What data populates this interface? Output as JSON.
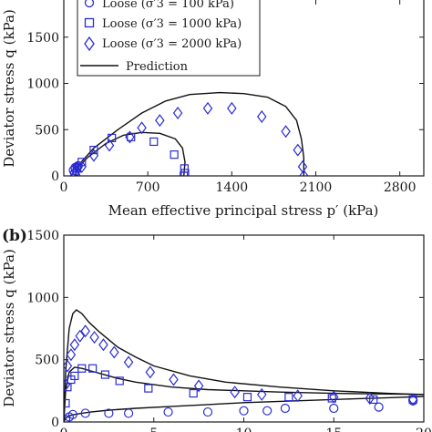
{
  "figure": {
    "colors": {
      "marker": "#2b2bd6",
      "prediction": "#111111",
      "axis": "#1a1a1a"
    },
    "legend": [
      {
        "label": "Loose (σ′3 = 100 kPa)",
        "marker": "circle"
      },
      {
        "label": "Loose (σ′3 = 1000 kPa)",
        "marker": "square"
      },
      {
        "label": "Loose (σ′3 = 2000 kPa)",
        "marker": "diamond"
      },
      {
        "label": "Prediction",
        "marker": "line"
      }
    ]
  },
  "chart_data": [
    {
      "type": "scatter",
      "panel": "",
      "title": "",
      "xlabel": "Mean effective principal stress p′ (kPa)",
      "ylabel": "Deviator stress q (kPa)",
      "xlim": [
        0,
        3000
      ],
      "ylim": [
        0,
        2000
      ],
      "xticks": [
        0,
        700,
        1400,
        2100,
        2800
      ],
      "yticks": [
        0,
        500,
        1000,
        1500
      ],
      "legend_position": "top-left",
      "series": [
        {
          "name": "Loose (σ′3 = 100 kPa)",
          "marker": "circle",
          "x": [
            100,
            90,
            80,
            95,
            110,
            120
          ],
          "y": [
            0,
            30,
            60,
            90,
            100,
            110
          ]
        },
        {
          "name": "Loose (σ′3 = 1000 kPa)",
          "marker": "square",
          "x": [
            1000,
            1010,
            1005,
            920,
            750,
            560,
            400,
            250,
            150,
            110
          ],
          "y": [
            0,
            30,
            80,
            230,
            370,
            420,
            410,
            280,
            150,
            80
          ]
        },
        {
          "name": "Loose (σ′3 = 2000 kPa)",
          "marker": "diamond",
          "x": [
            2000,
            1990,
            1950,
            1850,
            1650,
            1400,
            1200,
            950,
            800,
            650,
            550,
            380,
            250,
            150,
            100
          ],
          "y": [
            0,
            100,
            280,
            480,
            640,
            730,
            730,
            680,
            600,
            520,
            420,
            330,
            220,
            100,
            50
          ]
        },
        {
          "name": "Prediction",
          "marker": "line",
          "curves": [
            {
              "x": [
                100,
                100,
                95,
                100,
                110,
                120
              ],
              "y": [
                0,
                60,
                100,
                130,
                140,
                150
              ]
            },
            {
              "x": [
                1000,
                1010,
                990,
                930,
                800,
                650,
                500,
                350,
                200,
                110
              ],
              "y": [
                0,
                150,
                300,
                400,
                460,
                470,
                440,
                350,
                200,
                80
              ]
            },
            {
              "x": [
                2000,
                2000,
                1980,
                1940,
                1850,
                1700,
                1500,
                1300,
                1050,
                850,
                650,
                450,
                250,
                110
              ],
              "y": [
                0,
                200,
                400,
                600,
                750,
                850,
                890,
                900,
                880,
                810,
                680,
                500,
                300,
                100
              ]
            }
          ]
        }
      ]
    },
    {
      "type": "scatter",
      "panel": "(b)",
      "title": "",
      "xlabel": "",
      "ylabel": "Deviator stress q (kPa)",
      "xlim": [
        0,
        20
      ],
      "ylim": [
        0,
        1500
      ],
      "xticks": [
        0,
        5,
        10,
        15,
        20
      ],
      "yticks": [
        0,
        500,
        1000,
        1500
      ],
      "series": [
        {
          "name": "Loose (σ′3 = 100 kPa)",
          "marker": "circle",
          "x": [
            0.1,
            0.3,
            0.5,
            1.2,
            2.5,
            3.6,
            5.8,
            8.0,
            10.0,
            11.3,
            12.3,
            15.0,
            17.5,
            19.4
          ],
          "y": [
            20,
            40,
            60,
            70,
            70,
            70,
            80,
            80,
            90,
            90,
            110,
            110,
            120,
            170
          ]
        },
        {
          "name": "Loose (σ′3 = 1000 kPa)",
          "marker": "square",
          "x": [
            0.1,
            0.2,
            0.4,
            0.6,
            1.0,
            1.6,
            2.3,
            3.1,
            4.7,
            7.2,
            10.2,
            12.5,
            14.9,
            17.2,
            19.4
          ],
          "y": [
            150,
            280,
            340,
            370,
            430,
            430,
            380,
            330,
            270,
            230,
            200,
            200,
            190,
            180,
            180
          ]
        },
        {
          "name": "Loose (σ′3 = 2000 kPa)",
          "marker": "diamond",
          "x": [
            0.1,
            0.2,
            0.4,
            0.6,
            0.9,
            1.2,
            1.7,
            2.2,
            2.8,
            3.6,
            4.8,
            6.1,
            7.5,
            9.5,
            11.0,
            13.0,
            15.0,
            17.0,
            19.4
          ],
          "y": [
            300,
            450,
            540,
            620,
            690,
            730,
            680,
            620,
            560,
            480,
            400,
            340,
            290,
            240,
            220,
            210,
            200,
            190,
            180
          ]
        },
        {
          "name": "Prediction",
          "marker": "line",
          "curves": [
            {
              "x": [
                0,
                0.1,
                0.3,
                0.6,
                1.0,
                1.5,
                2.5,
                4,
                6,
                8,
                10,
                12,
                14,
                16,
                18,
                20
              ],
              "y": [
                0,
                30,
                50,
                60,
                70,
                80,
                95,
                110,
                125,
                140,
                155,
                165,
                175,
                185,
                195,
                205
              ]
            },
            {
              "x": [
                0,
                0.1,
                0.3,
                0.6,
                1.0,
                1.5,
                2.0,
                3,
                4,
                6,
                8,
                10,
                12,
                15,
                18,
                20
              ],
              "y": [
                0,
                250,
                400,
                440,
                430,
                410,
                390,
                350,
                320,
                280,
                260,
                250,
                240,
                230,
                225,
                222
              ]
            },
            {
              "x": [
                0,
                0.1,
                0.3,
                0.5,
                0.7,
                1.0,
                1.4,
                2.0,
                3,
                4,
                5,
                7,
                9,
                12,
                15,
                18,
                20
              ],
              "y": [
                0,
                400,
                750,
                870,
                900,
                870,
                800,
                720,
                600,
                520,
                450,
                370,
                320,
                280,
                250,
                230,
                220
              ]
            }
          ]
        }
      ]
    }
  ]
}
